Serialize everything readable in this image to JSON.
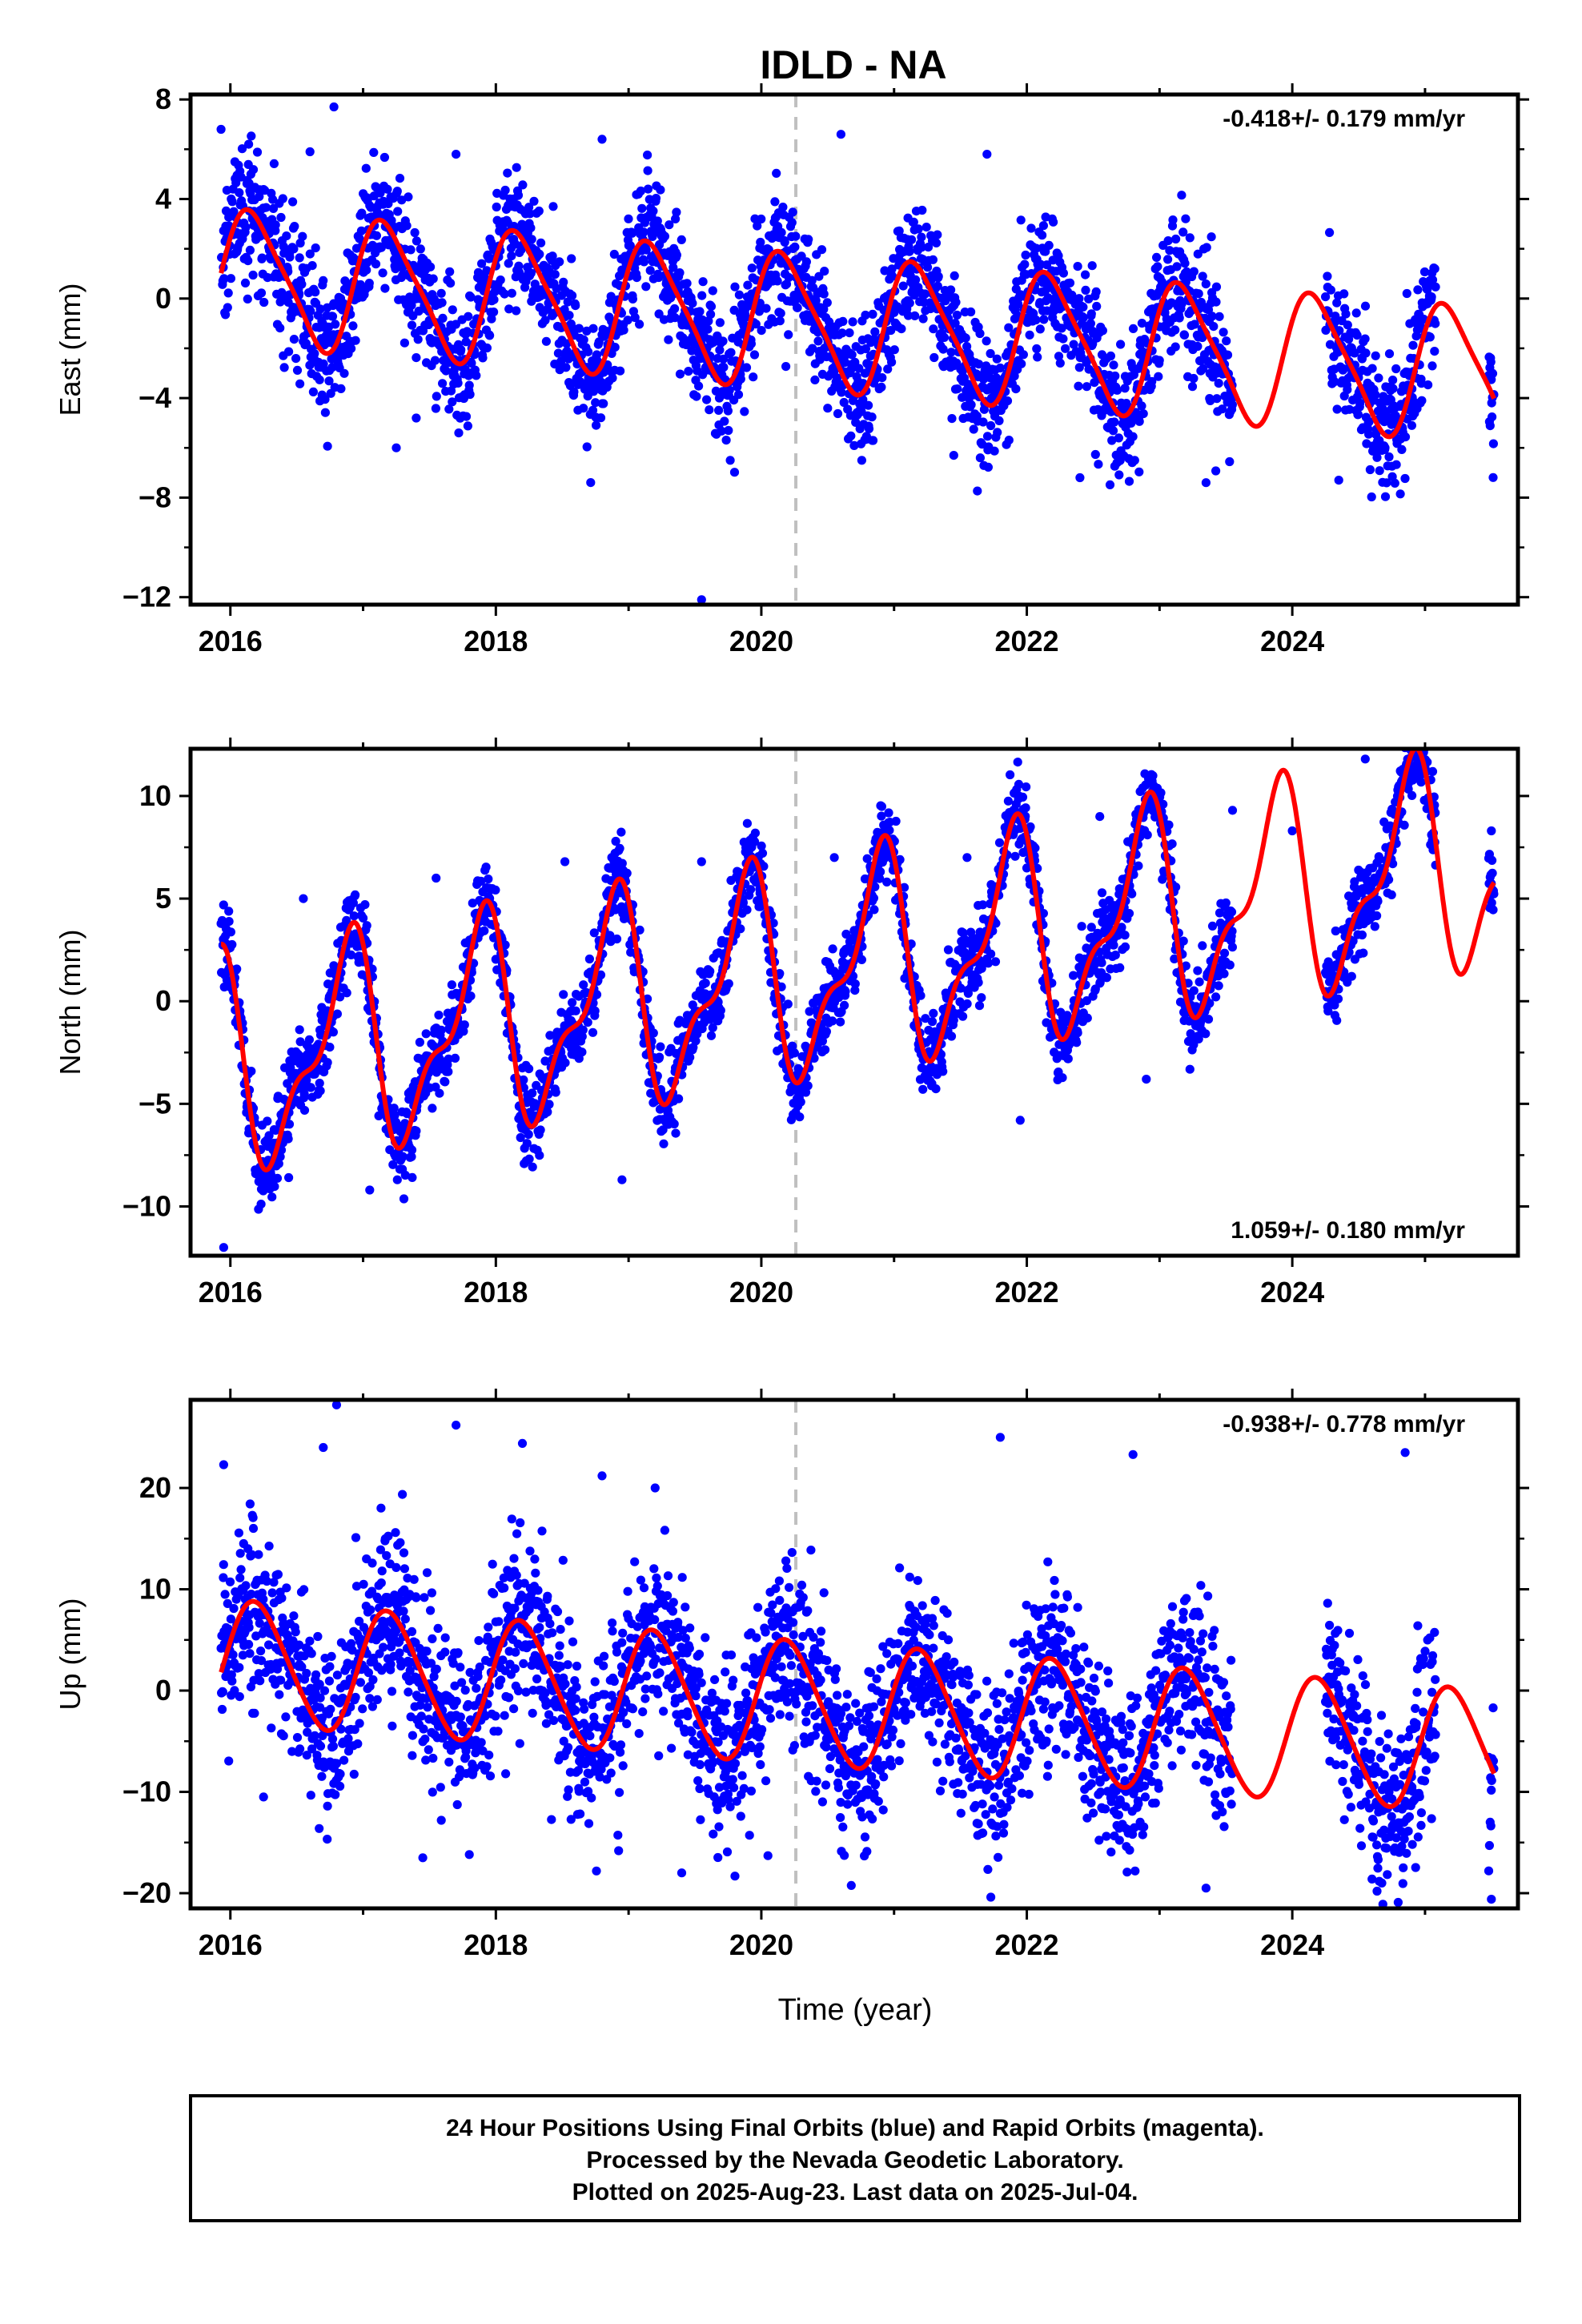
{
  "title": "IDLD - NA",
  "xlabel": "Time (year)",
  "footer": {
    "lines": [
      "24 Hour Positions Using Final Orbits (blue) and Rapid Orbits (magenta).",
      "Processed by the Nevada Geodetic Laboratory.",
      "Plotted on 2025-Aug-23. Last data on 2025-Jul-04."
    ]
  },
  "colors": {
    "points": "#0000ff",
    "model": "#ff0000",
    "marker_line": "#c0c0c0",
    "axes": "#000000"
  },
  "chart_data": [
    {
      "type": "scatter",
      "name": "east",
      "ylabel": "East (mm)",
      "rate_label": "-0.418+/- 0.179 mm/yr",
      "rate_position": "top-right",
      "xlim": [
        2015.7,
        2025.7
      ],
      "ylim": [
        -12.3,
        8.2
      ],
      "yticks": [
        8,
        4,
        0,
        -4,
        -8,
        -12
      ],
      "ytick_labels": [
        "8",
        "4",
        "0",
        "−4",
        "−8",
        "−12"
      ],
      "xticks": [
        2016,
        2018,
        2020,
        2022,
        2024
      ],
      "xtick_labels": [
        "2016",
        "2018",
        "2020",
        "2022",
        "2024"
      ],
      "vertical_marker_x": 2020.26,
      "data_spans": [
        [
          2015.93,
          2023.55
        ],
        [
          2024.25,
          2025.08
        ],
        [
          2025.48,
          2025.52
        ]
      ],
      "point_spread": 1.3,
      "model": {
        "offset": 0.9,
        "slope": -0.418,
        "ref": 2016.0,
        "amp1": 2.6,
        "phase1": 0.45,
        "amp2": 0.5,
        "phase2": 1.0
      },
      "outliers": [
        [
          2015.93,
          6.8
        ],
        [
          2016.78,
          7.7
        ],
        [
          2017.25,
          -6.0
        ],
        [
          2019.55,
          -12.1
        ],
        [
          2020.6,
          6.6
        ],
        [
          2021.45,
          -6.3
        ],
        [
          2018.8,
          6.4
        ],
        [
          2016.6,
          5.9
        ],
        [
          2017.7,
          5.8
        ],
        [
          2021.7,
          5.8
        ],
        [
          2022.4,
          -7.2
        ],
        [
          2023.35,
          -7.4
        ],
        [
          2024.35,
          -7.3
        ],
        [
          2024.9,
          -5.1
        ],
        [
          2017.4,
          -4.8
        ]
      ],
      "grid": false,
      "legend": "none"
    },
    {
      "type": "scatter",
      "name": "north",
      "ylabel": "North (mm)",
      "rate_label": "1.059+/- 0.180 mm/yr",
      "rate_position": "bottom-right",
      "xlim": [
        2015.7,
        2025.7
      ],
      "ylim": [
        -12.4,
        12.3
      ],
      "yticks": [
        10,
        5,
        0,
        -5,
        -10
      ],
      "ytick_labels": [
        "10",
        "5",
        "0",
        "−5",
        "−10"
      ],
      "xticks": [
        2016,
        2018,
        2020,
        2022,
        2024
      ],
      "xtick_labels": [
        "2016",
        "2018",
        "2020",
        "2022",
        "2024"
      ],
      "vertical_marker_x": 2020.26,
      "data_spans": [
        [
          2015.93,
          2023.55
        ],
        [
          2024.25,
          2025.08
        ],
        [
          2025.48,
          2025.52
        ]
      ],
      "point_spread": 1.0,
      "model": {
        "offset": -3.2,
        "slope": 1.059,
        "ref": 2016.0,
        "amp1": 4.6,
        "phase1": 2.4,
        "amp2": 2.0,
        "phase2": 2.0
      },
      "outliers": [
        [
          2015.95,
          -12.0
        ],
        [
          2016.55,
          5.0
        ],
        [
          2017.55,
          6.0
        ],
        [
          2018.52,
          6.8
        ],
        [
          2019.55,
          6.8
        ],
        [
          2020.55,
          7.0
        ],
        [
          2021.55,
          7.0
        ],
        [
          2022.55,
          9.0
        ],
        [
          2023.55,
          9.3
        ],
        [
          2024.55,
          11.8
        ],
        [
          2021.95,
          -5.8
        ],
        [
          2022.9,
          -3.8
        ],
        [
          2018.95,
          -8.7
        ],
        [
          2017.05,
          -9.2
        ],
        [
          2024.0,
          8.3
        ],
        [
          2025.5,
          8.3
        ]
      ],
      "grid": false,
      "legend": "none"
    },
    {
      "type": "scatter",
      "name": "up",
      "ylabel": "Up (mm)",
      "rate_label": "-0.938+/- 0.778 mm/yr",
      "rate_position": "top-right",
      "xlim": [
        2015.7,
        2025.7
      ],
      "ylim": [
        -21.5,
        28.7
      ],
      "yticks": [
        20,
        10,
        0,
        -10,
        -20
      ],
      "ytick_labels": [
        "20",
        "10",
        "0",
        "−10",
        "−20"
      ],
      "xticks": [
        2016,
        2018,
        2020,
        2022,
        2024
      ],
      "xtick_labels": [
        "2016",
        "2018",
        "2020",
        "2022",
        "2024"
      ],
      "vertical_marker_x": 2020.26,
      "data_spans": [
        [
          2015.93,
          2023.55
        ],
        [
          2024.25,
          2025.08
        ],
        [
          2025.48,
          2025.52
        ]
      ],
      "point_spread": 4.2,
      "model": {
        "offset": 2.8,
        "slope": -0.938,
        "ref": 2016.0,
        "amp1": 6.0,
        "phase1": 0.3,
        "amp2": 0.6,
        "phase2": 0.5
      },
      "outliers": [
        [
          2016.8,
          28.2
        ],
        [
          2017.7,
          26.2
        ],
        [
          2018.2,
          24.4
        ],
        [
          2021.8,
          25.0
        ],
        [
          2022.8,
          23.3
        ],
        [
          2024.85,
          23.5
        ],
        [
          2015.95,
          22.3
        ],
        [
          2016.7,
          24.0
        ],
        [
          2017.45,
          -16.5
        ],
        [
          2019.4,
          -18.0
        ],
        [
          2020.05,
          -16.3
        ],
        [
          2023.35,
          -19.5
        ],
        [
          2025.5,
          -20.6
        ],
        [
          2025.48,
          -17.8
        ],
        [
          2018.8,
          21.2
        ],
        [
          2019.2,
          20.0
        ],
        [
          2016.25,
          -10.5
        ]
      ],
      "grid": false,
      "legend": "none"
    }
  ]
}
